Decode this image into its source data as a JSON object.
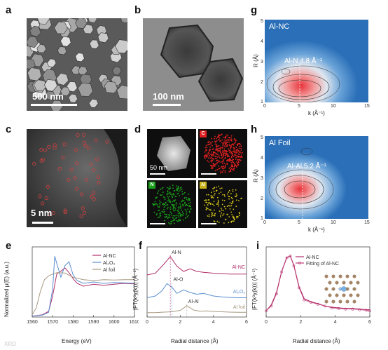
{
  "figure": {
    "panel_labels": [
      "a",
      "b",
      "c",
      "d",
      "e",
      "f",
      "g",
      "h",
      "i"
    ],
    "a": {
      "scale": "500 nm"
    },
    "b": {
      "scale": "100 nm"
    },
    "c": {
      "scale": "5 nm"
    },
    "d": {
      "scale": "50 nm",
      "elements": [
        "C",
        "N",
        "Al"
      ],
      "element_colors": [
        "#e02020",
        "#1aa01a",
        "#d8c81a"
      ]
    },
    "g": {
      "title": "Al-NC",
      "annotation": "Al-N 4.8 Å⁻¹",
      "ylabel": "R (Å)",
      "xlabel": "k (Å⁻¹)",
      "xticks": [
        "0",
        "5",
        "10",
        "15"
      ],
      "yticks": [
        "1",
        "2",
        "3",
        "4",
        "5"
      ]
    },
    "h": {
      "title": "Al Foil",
      "annotation": "Al-Al 5.2 Å⁻¹",
      "ylabel": "R (Å)",
      "xlabel": "k (Å⁻¹)",
      "xticks": [
        "0",
        "5",
        "10",
        "15"
      ],
      "yticks": [
        "1",
        "2",
        "3",
        "4",
        "5"
      ]
    },
    "e": {
      "ylabel": "Normalized μ(E) (a.u.)",
      "xlabel": "Energy (eV)",
      "xticks": [
        "1560",
        "1570",
        "1580",
        "1590",
        "1600",
        "1610"
      ],
      "legend": [
        "Al-NC",
        "Al₂O₃",
        "Al foil"
      ]
    },
    "f": {
      "ylabel": "|FT(k³χ(k))| (Å⁻³)",
      "xlabel": "Radial distance (Å)",
      "xticks": [
        "0",
        "2",
        "4",
        "6"
      ],
      "labels": [
        "Al-NC",
        "Al₂O₃",
        "Al foil"
      ],
      "annotations": [
        "Al-N",
        "Al-O",
        "Al-Al"
      ]
    },
    "i": {
      "ylabel": "|FT(k³χ(k))| (Å⁻³)",
      "xlabel": "Radial distance (Å)",
      "xticks": [
        "0",
        "2",
        "4",
        "6"
      ],
      "legend": [
        "Al-NC",
        "Fitting of Al-NC"
      ]
    },
    "watermark": "XRD"
  },
  "colors": {
    "alnc": "#b0306a",
    "al2o3": "#5b8fd0",
    "alfoil": "#a89a80",
    "fit": "#c2407a"
  },
  "chart_data": [
    {
      "panel": "e",
      "type": "line",
      "xlabel": "Energy (eV)",
      "ylabel": "Normalized μ(E) (a.u.)",
      "xlim": [
        1560,
        1610
      ],
      "series": [
        {
          "name": "Al-NC",
          "x": [
            1560,
            1565,
            1568,
            1570,
            1572,
            1574,
            1576,
            1578,
            1580,
            1582,
            1585,
            1590,
            1595,
            1600,
            1605,
            1610
          ],
          "y": [
            0.02,
            0.05,
            0.12,
            0.45,
            0.92,
            0.98,
            1.05,
            0.95,
            0.82,
            0.72,
            0.66,
            0.7,
            0.68,
            0.7,
            0.72,
            0.71
          ]
        },
        {
          "name": "Al₂O₃",
          "x": [
            1560,
            1565,
            1568,
            1570,
            1571,
            1572,
            1574,
            1576,
            1578,
            1580,
            1582,
            1585,
            1590,
            1595,
            1600,
            1605,
            1610
          ],
          "y": [
            0.02,
            0.04,
            0.1,
            0.6,
            1.3,
            1.15,
            0.85,
            1.1,
            1.18,
            0.9,
            0.78,
            0.72,
            0.75,
            0.72,
            0.74,
            0.73,
            0.72
          ]
        },
        {
          "name": "Al foil",
          "x": [
            1560,
            1562,
            1564,
            1566,
            1568,
            1570,
            1572,
            1576,
            1580,
            1585,
            1590,
            1595,
            1600,
            1605,
            1610
          ],
          "y": [
            0.05,
            0.2,
            0.55,
            0.8,
            0.88,
            0.92,
            0.95,
            0.94,
            0.85,
            0.8,
            0.78,
            0.8,
            0.79,
            0.8,
            0.8
          ]
        }
      ]
    },
    {
      "panel": "f",
      "type": "line",
      "xlabel": "Radial distance (Å)",
      "xlim": [
        0,
        6
      ],
      "series": [
        {
          "name": "Al-NC",
          "x": [
            0,
            0.5,
            1,
            1.4,
            1.8,
            2.2,
            2.6,
            3.0,
            3.4,
            4,
            4.5,
            5,
            5.5,
            6
          ],
          "y": [
            2.4,
            2.5,
            3.0,
            3.45,
            2.9,
            2.6,
            2.75,
            2.6,
            2.55,
            2.5,
            2.48,
            2.45,
            2.45,
            2.45
          ]
        },
        {
          "name": "Al₂O₃",
          "x": [
            0,
            0.5,
            0.9,
            1.2,
            1.5,
            1.8,
            2.2,
            2.6,
            3.0,
            3.4,
            4,
            4.5,
            5,
            5.5,
            6
          ],
          "y": [
            1.1,
            1.2,
            1.5,
            1.9,
            1.7,
            1.35,
            1.55,
            1.4,
            1.3,
            1.35,
            1.2,
            1.15,
            1.12,
            1.1,
            1.1
          ]
        },
        {
          "name": "Al foil",
          "x": [
            0,
            0.5,
            1,
            1.5,
            2.0,
            2.4,
            2.8,
            3.2,
            3.6,
            4,
            4.5,
            5,
            5.5,
            6
          ],
          "y": [
            0.25,
            0.25,
            0.28,
            0.3,
            0.38,
            0.65,
            0.4,
            0.33,
            0.35,
            0.32,
            0.3,
            0.28,
            0.27,
            0.27
          ]
        }
      ]
    },
    {
      "panel": "i",
      "type": "line",
      "xlabel": "Radial distance (Å)",
      "xlim": [
        0,
        6
      ],
      "series": [
        {
          "name": "Al-NC",
          "x": [
            0,
            0.3,
            0.6,
            0.9,
            1.2,
            1.4,
            1.6,
            1.9,
            2.2,
            2.6,
            3.0,
            3.4,
            3.8,
            4.2,
            4.6,
            5.0,
            5.4,
            5.8,
            6
          ],
          "y": [
            0.1,
            0.2,
            0.4,
            0.75,
            0.98,
            1.0,
            0.85,
            0.5,
            0.3,
            0.25,
            0.22,
            0.18,
            0.16,
            0.15,
            0.14,
            0.14,
            0.13,
            0.12,
            0.12
          ]
        },
        {
          "name": "Fitting of Al-NC",
          "x": [
            0,
            0.3,
            0.6,
            0.9,
            1.2,
            1.4,
            1.6,
            1.9,
            2.2,
            2.6,
            3.0,
            3.4,
            3.8,
            4.2,
            4.6,
            5.0,
            5.4,
            5.8,
            6
          ],
          "y": [
            0.1,
            0.18,
            0.38,
            0.74,
            0.97,
            1.0,
            0.84,
            0.48,
            0.28,
            0.24,
            0.21,
            0.18,
            0.15,
            0.14,
            0.13,
            0.13,
            0.12,
            0.11,
            0.1
          ]
        }
      ]
    }
  ]
}
